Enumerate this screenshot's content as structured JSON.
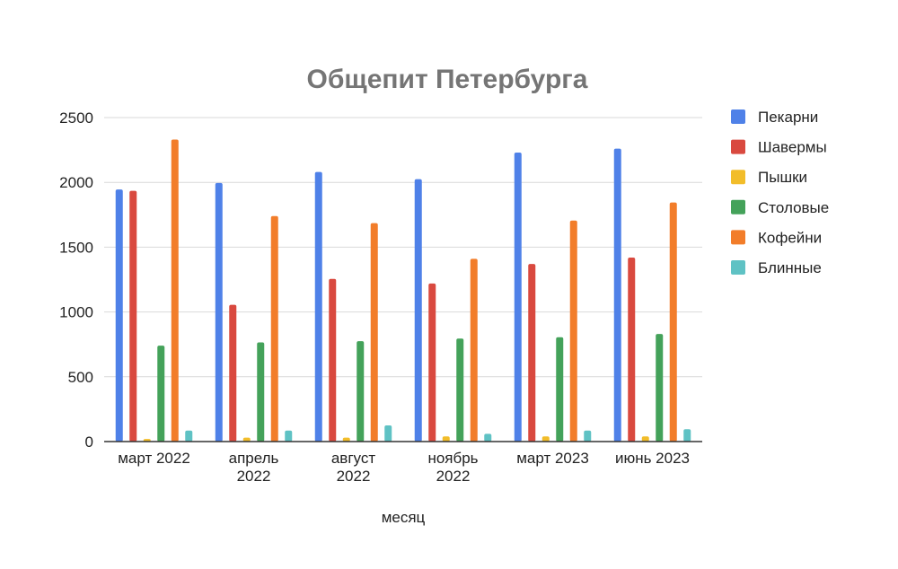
{
  "chart_data": {
    "type": "bar",
    "title": "Общепит Петербурга",
    "xlabel": "месяц",
    "ylabel": "",
    "ylim": [
      0,
      2500
    ],
    "yticks": [
      0,
      500,
      1000,
      1500,
      2000,
      2500
    ],
    "grid": true,
    "legend_position": "right",
    "categories": [
      [
        "март 2022"
      ],
      [
        "апрель",
        "2022"
      ],
      [
        "август",
        "2022"
      ],
      [
        "ноябрь",
        "2022"
      ],
      [
        "март 2023"
      ],
      [
        "июнь 2023"
      ]
    ],
    "series": [
      {
        "name": "Пекарни",
        "color": "#4f81e8",
        "values": [
          1945,
          1995,
          2080,
          2025,
          2230,
          2260
        ]
      },
      {
        "name": "Шавермы",
        "color": "#d9493f",
        "values": [
          1935,
          1055,
          1255,
          1220,
          1370,
          1420
        ]
      },
      {
        "name": "Пышки",
        "color": "#f2bd2a",
        "values": [
          20,
          30,
          30,
          40,
          40,
          40
        ]
      },
      {
        "name": "Столовые",
        "color": "#44a25a",
        "values": [
          740,
          765,
          775,
          795,
          805,
          830
        ]
      },
      {
        "name": "Кофейни",
        "color": "#f27d2a",
        "values": [
          2330,
          1740,
          1685,
          1410,
          1705,
          1845
        ]
      },
      {
        "name": "Блинные",
        "color": "#5fc2c4",
        "values": [
          85,
          85,
          125,
          60,
          85,
          95
        ]
      }
    ]
  }
}
